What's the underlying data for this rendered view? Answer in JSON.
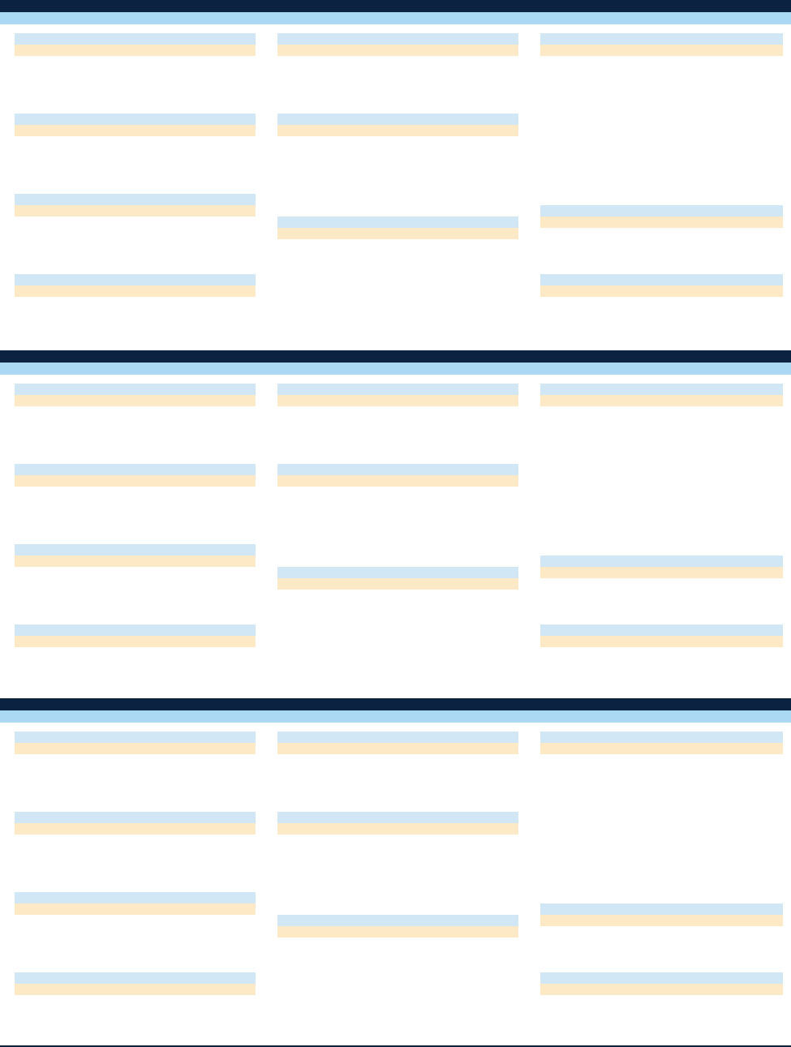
{
  "sections": [
    {
      "title": "",
      "subtitle": "",
      "cards": [
        {
          "label": "",
          "value": ""
        },
        {
          "label": "",
          "value": ""
        },
        {
          "label": "",
          "value": ""
        },
        {
          "label": "",
          "value": ""
        },
        {
          "label": "",
          "value": ""
        },
        {
          "label": "",
          "value": ""
        },
        {
          "label": "",
          "value": ""
        },
        {
          "label": "",
          "value": ""
        },
        {
          "label": "",
          "value": ""
        },
        {
          "label": "",
          "value": ""
        }
      ]
    },
    {
      "title": "",
      "subtitle": "",
      "cards": [
        {
          "label": "",
          "value": ""
        },
        {
          "label": "",
          "value": ""
        },
        {
          "label": "",
          "value": ""
        },
        {
          "label": "",
          "value": ""
        },
        {
          "label": "",
          "value": ""
        },
        {
          "label": "",
          "value": ""
        },
        {
          "label": "",
          "value": ""
        },
        {
          "label": "",
          "value": ""
        },
        {
          "label": "",
          "value": ""
        },
        {
          "label": "",
          "value": ""
        }
      ]
    },
    {
      "title": "",
      "subtitle": "",
      "cards": [
        {
          "label": "",
          "value": ""
        },
        {
          "label": "",
          "value": ""
        },
        {
          "label": "",
          "value": ""
        },
        {
          "label": "",
          "value": ""
        },
        {
          "label": "",
          "value": ""
        },
        {
          "label": "",
          "value": ""
        },
        {
          "label": "",
          "value": ""
        },
        {
          "label": "",
          "value": ""
        },
        {
          "label": "",
          "value": ""
        },
        {
          "label": "",
          "value": ""
        }
      ]
    }
  ],
  "colors": {
    "header_navy": "#0b2341",
    "subheader_blue": "#abd8f2",
    "card_label_blue": "#d1e7f5",
    "card_value_peach": "#fde9c6",
    "background": "#ffffff"
  }
}
